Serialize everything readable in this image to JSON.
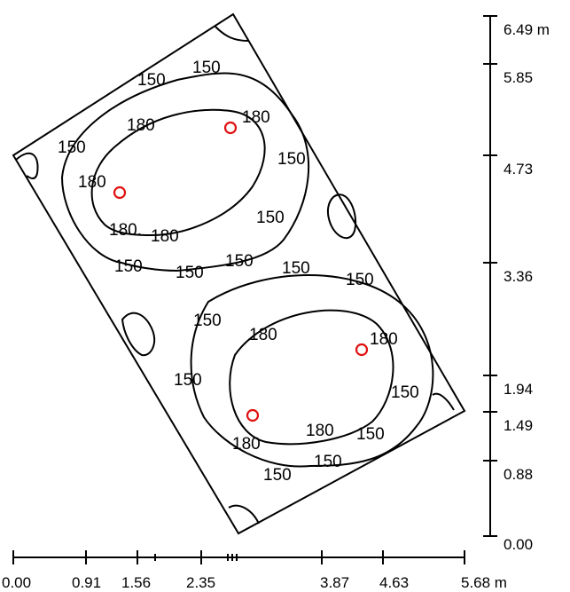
{
  "contour_labels": {
    "outer": "150",
    "inner": "180",
    "inner_dot": "180."
  },
  "axis": {
    "x_ticks": [
      "0.00",
      "0.91",
      "1.56",
      "2.35",
      "3.87",
      "4.63",
      "5.68 m"
    ],
    "y_ticks": [
      "6.49 m",
      "5.85",
      "4.73",
      "3.36",
      "1.94",
      "1.49",
      "0.88",
      "0.00"
    ]
  },
  "colors": {
    "line": "#000000",
    "marker": "#e01010"
  }
}
